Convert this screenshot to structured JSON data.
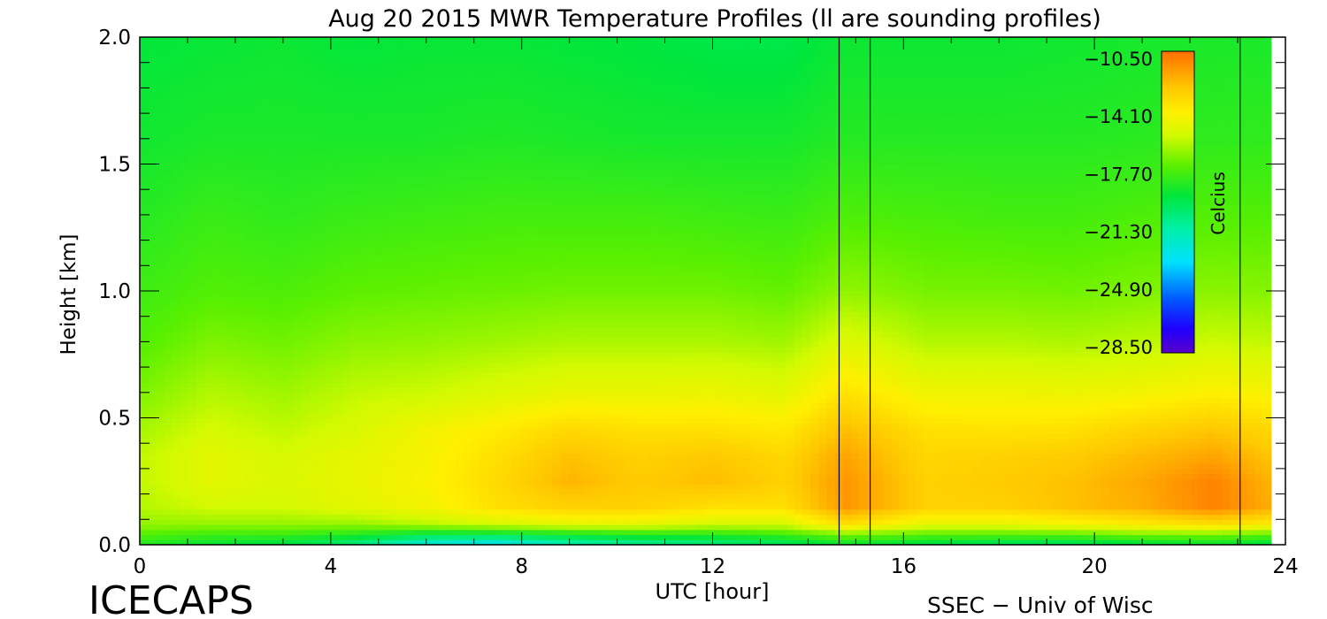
{
  "chart_data": {
    "type": "heatmap",
    "title": "Aug 20 2015 MWR Temperature Profiles (ll are sounding profiles)",
    "xlabel": "UTC [hour]",
    "ylabel": "Height [km]",
    "xlim": [
      0,
      24
    ],
    "ylim": [
      0,
      2.0
    ],
    "x_ticks": [
      "0",
      "4",
      "8",
      "12",
      "16",
      "20",
      "24"
    ],
    "y_ticks": [
      "0.0",
      "0.5",
      "1.0",
      "1.5",
      "2.0"
    ],
    "x_tick_values": [
      0,
      4,
      8,
      12,
      16,
      20,
      24
    ],
    "y_tick_values": [
      0,
      0.5,
      1.0,
      1.5,
      2.0
    ],
    "sounding_profile_times": [
      14.65,
      15.3,
      23.05
    ],
    "colorbar": {
      "label": "Celcius",
      "tick_labels": [
        "−10.50",
        "−14.10",
        "−17.70",
        "−21.30",
        "−24.90",
        "−28.50"
      ],
      "tick_values": [
        -10.5,
        -14.1,
        -17.7,
        -21.3,
        -24.9,
        -28.5
      ],
      "range": [
        -28.5,
        -10.5
      ]
    },
    "heights_km": [
      0.0,
      0.04,
      0.08,
      0.15,
      0.25,
      0.35,
      0.45,
      0.6,
      0.8,
      1.0,
      1.3,
      1.6,
      2.0
    ],
    "time_hours": [
      0,
      1.5,
      3,
      4.5,
      6,
      7.5,
      9,
      10.5,
      12,
      13.5,
      14.8,
      16.5,
      18,
      19.5,
      21,
      22.5,
      23.7
    ],
    "temperature_c": [
      [
        -18.5,
        -19.0,
        -19.5,
        -20.5,
        -22.5,
        -23.0,
        -21.5,
        -21.0,
        -20.5,
        -20.0,
        -19.0,
        -19.5,
        -20.0,
        -20.0,
        -19.5,
        -19.0,
        -19.5
      ],
      [
        -17.5,
        -18.0,
        -18.0,
        -18.5,
        -19.5,
        -19.5,
        -19.0,
        -18.5,
        -18.5,
        -18.0,
        -17.0,
        -17.5,
        -17.5,
        -17.5,
        -17.0,
        -17.0,
        -17.5
      ],
      [
        -16.5,
        -16.5,
        -16.5,
        -16.5,
        -16.0,
        -15.5,
        -15.0,
        -15.0,
        -15.5,
        -15.5,
        -13.5,
        -15.0,
        -15.0,
        -14.5,
        -14.0,
        -13.5,
        -14.0
      ],
      [
        -16.0,
        -15.5,
        -15.5,
        -15.0,
        -14.5,
        -13.5,
        -13.0,
        -13.0,
        -13.5,
        -13.5,
        -11.5,
        -13.0,
        -13.0,
        -12.5,
        -12.0,
        -11.0,
        -12.0
      ],
      [
        -15.8,
        -15.0,
        -15.3,
        -14.8,
        -14.3,
        -13.3,
        -12.2,
        -12.8,
        -12.4,
        -13.0,
        -11.5,
        -13.0,
        -12.8,
        -12.5,
        -11.9,
        -11.0,
        -12.2
      ],
      [
        -15.8,
        -15.0,
        -15.4,
        -14.9,
        -14.4,
        -13.5,
        -12.5,
        -13.0,
        -12.7,
        -13.2,
        -11.8,
        -13.2,
        -13.0,
        -12.8,
        -12.3,
        -11.8,
        -12.6
      ],
      [
        -16.2,
        -15.4,
        -15.8,
        -15.3,
        -14.5,
        -13.9,
        -13.2,
        -13.5,
        -13.5,
        -13.8,
        -12.4,
        -13.5,
        -13.6,
        -13.5,
        -13.0,
        -12.6,
        -13.2
      ],
      [
        -16.8,
        -16.0,
        -16.3,
        -15.8,
        -15.6,
        -15.2,
        -14.8,
        -14.8,
        -14.7,
        -15.0,
        -13.6,
        -14.6,
        -14.6,
        -14.7,
        -14.5,
        -14.1,
        -14.4
      ],
      [
        -17.5,
        -16.8,
        -17.0,
        -16.6,
        -16.5,
        -16.3,
        -16.1,
        -16.1,
        -16.1,
        -16.3,
        -15.2,
        -16.0,
        -16.0,
        -16.1,
        -15.9,
        -15.6,
        -15.8
      ],
      [
        -17.9,
        -17.5,
        -17.6,
        -17.3,
        -17.2,
        -17.1,
        -17.0,
        -17.0,
        -17.0,
        -17.2,
        -16.5,
        -16.9,
        -16.9,
        -17.0,
        -16.8,
        -16.6,
        -16.7
      ],
      [
        -18.4,
        -18.0,
        -18.2,
        -18.0,
        -17.9,
        -17.8,
        -17.8,
        -17.8,
        -17.9,
        -18.0,
        -17.6,
        -17.7,
        -17.8,
        -17.8,
        -17.6,
        -17.5,
        -17.5
      ],
      [
        -18.8,
        -18.6,
        -18.6,
        -18.6,
        -18.6,
        -18.5,
        -18.6,
        -18.7,
        -18.7,
        -18.7,
        -18.4,
        -18.4,
        -18.4,
        -18.4,
        -18.3,
        -18.2,
        -18.2
      ],
      [
        -19.1,
        -19.0,
        -18.9,
        -19.1,
        -19.0,
        -19.0,
        -19.1,
        -19.2,
        -19.4,
        -19.4,
        -18.9,
        -18.9,
        -18.9,
        -18.8,
        -18.7,
        -18.6,
        -18.6
      ]
    ]
  },
  "footer": {
    "left": "ICECAPS",
    "right": "SSEC − Univ of Wisc"
  }
}
